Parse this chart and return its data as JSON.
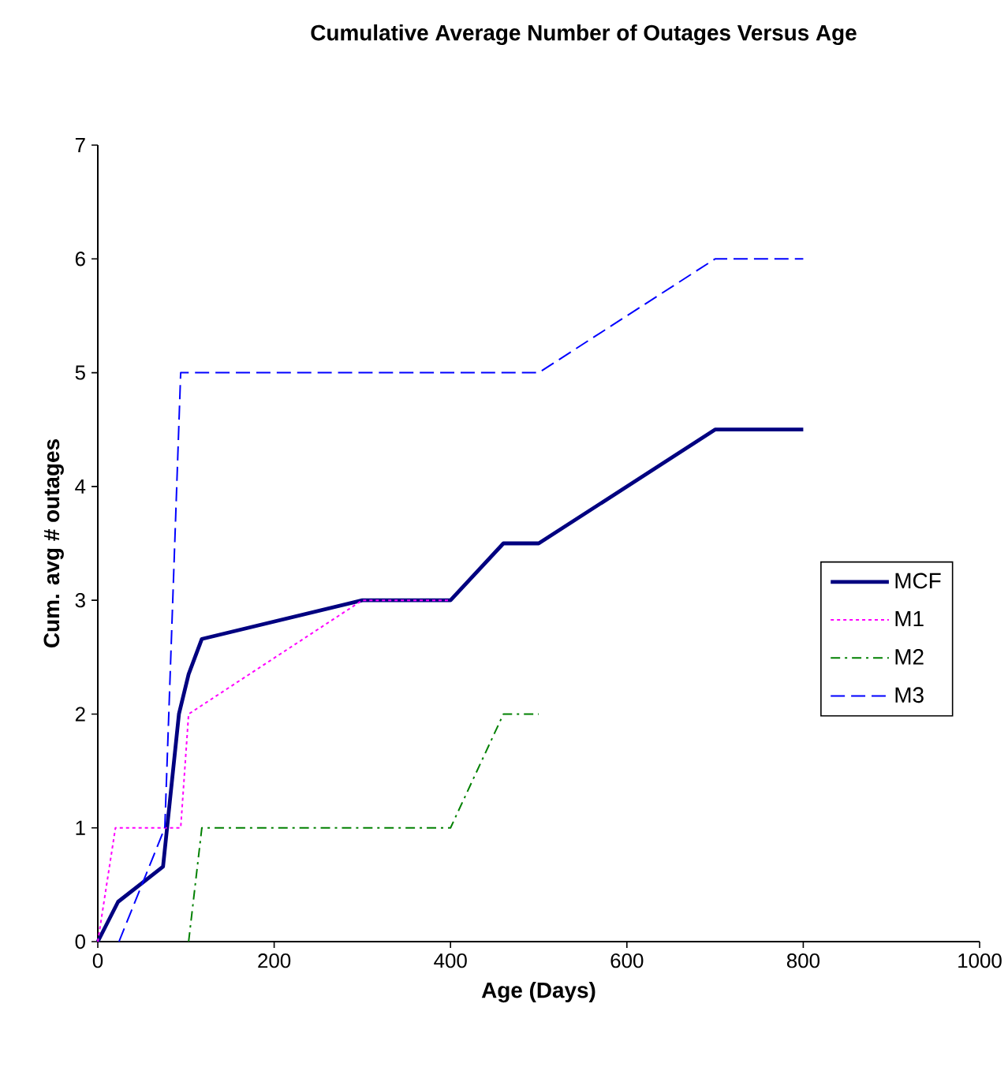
{
  "chart_data": {
    "type": "line",
    "title": "Cumulative Average Number of Outages Versus Age",
    "xlabel": "Age (Days)",
    "ylabel": "Cum. avg # outages",
    "xlim": [
      0,
      1000
    ],
    "xticks": [
      0,
      200,
      400,
      600,
      800,
      1000
    ],
    "ylim": [
      0,
      7
    ],
    "yticks": [
      0,
      1,
      2,
      3,
      4,
      5,
      6,
      7
    ],
    "grid": false,
    "legend": "right",
    "marker": "none",
    "series": [
      {
        "name": "MCF",
        "color": "#000080",
        "line_style": "solid",
        "x": [
          0,
          23,
          74,
          92,
          103,
          118,
          300,
          400,
          460,
          500,
          700,
          800
        ],
        "values": [
          0,
          0.35,
          0.66,
          2,
          2.35,
          2.66,
          3,
          3,
          3.5,
          3.5,
          4.5,
          4.5
        ]
      },
      {
        "name": "M1",
        "color": "#ff00ff",
        "line_style": "dotted",
        "x": [
          0,
          20,
          94,
          103,
          300,
          400
        ],
        "values": [
          0,
          1,
          1,
          2,
          3,
          3
        ]
      },
      {
        "name": "M2",
        "color": "#008000",
        "line_style": "dashdot",
        "x": [
          103,
          118,
          400,
          460,
          500
        ],
        "values": [
          0,
          1,
          1,
          2,
          2
        ]
      },
      {
        "name": "M3",
        "color": "#0000ff",
        "line_style": "dashed",
        "x": [
          24,
          76,
          94,
          500,
          700,
          800
        ],
        "values": [
          0,
          1,
          5,
          5,
          6,
          6
        ]
      }
    ]
  }
}
